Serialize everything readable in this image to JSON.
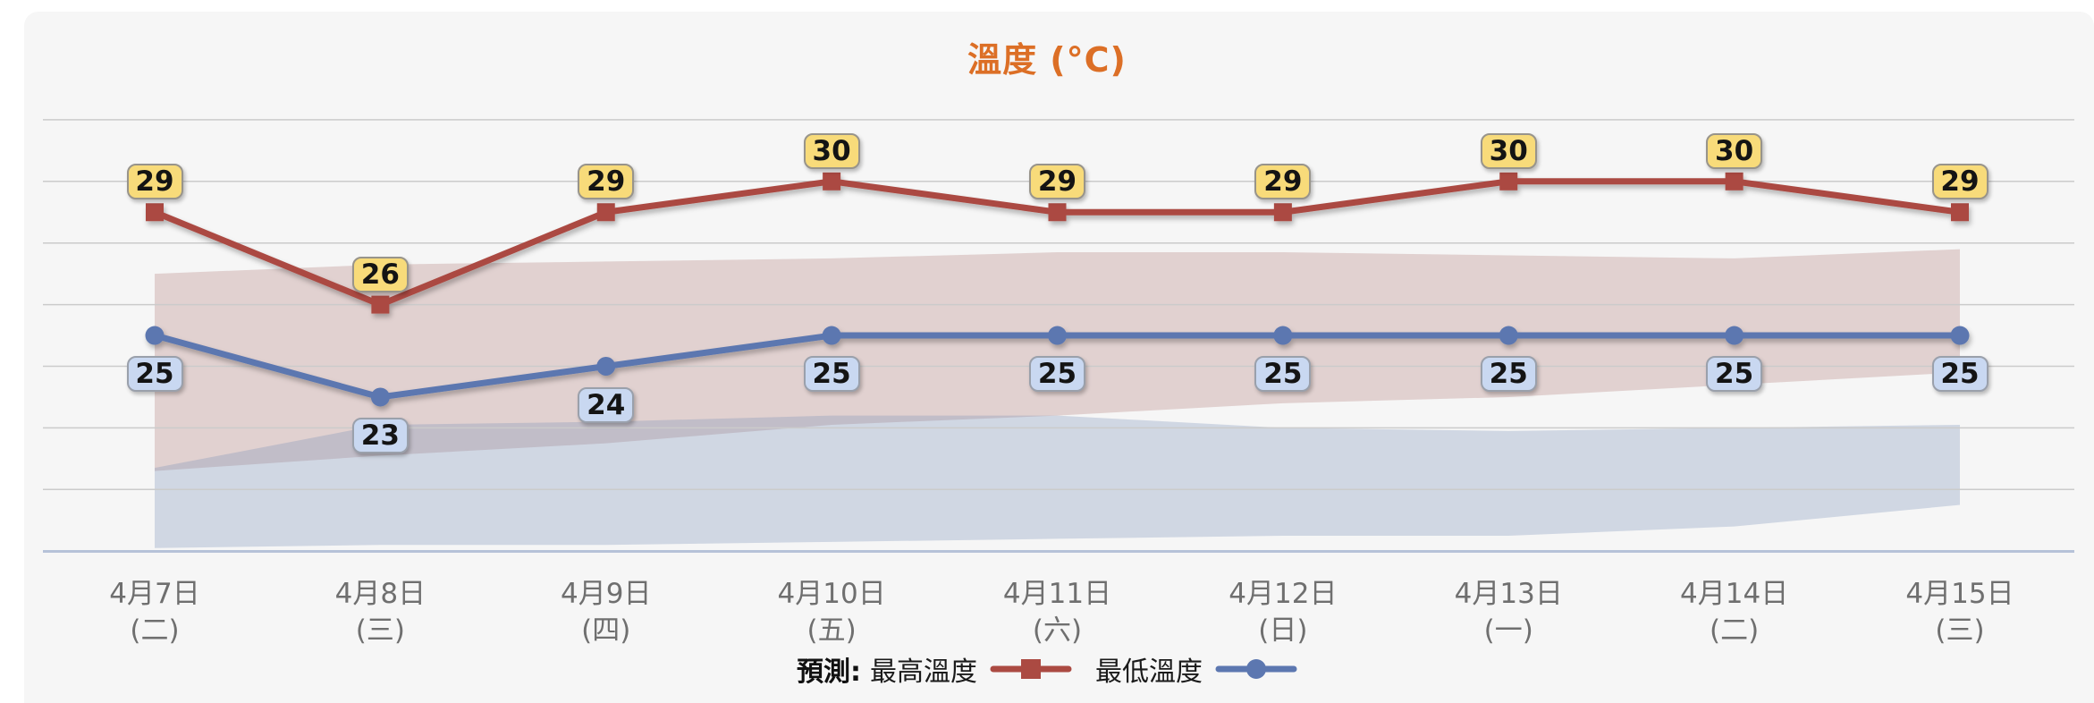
{
  "title": "溫度 (°C)",
  "colors": {
    "title": "#DC6F26",
    "max_series": "#AB4A42",
    "min_series": "#5C77B0",
    "max_label_bg": "#F8DB7A",
    "min_label_bg": "#C9D8F1"
  },
  "legend": {
    "prefix": "預測:",
    "max_label": "最高溫度",
    "min_label": "最低溫度"
  },
  "chart_data": {
    "type": "line",
    "title": "溫度 (°C)",
    "unit": "°C",
    "ylim": [
      18,
      33
    ],
    "gridline_temps": [
      20,
      22,
      24,
      26,
      28,
      30,
      32
    ],
    "grid_color": "#CBCBCB",
    "axis_color": "#B6C2D8",
    "tick_color": "#6F6F6F",
    "x_axis": [
      {
        "date": "4月7日",
        "weekday": "(二)"
      },
      {
        "date": "4月8日",
        "weekday": "(三)"
      },
      {
        "date": "4月9日",
        "weekday": "(四)"
      },
      {
        "date": "4月10日",
        "weekday": "(五)"
      },
      {
        "date": "4月11日",
        "weekday": "(六)"
      },
      {
        "date": "4月12日",
        "weekday": "(日)"
      },
      {
        "date": "4月13日",
        "weekday": "(一)"
      },
      {
        "date": "4月14日",
        "weekday": "(二)"
      },
      {
        "date": "4月15日",
        "weekday": "(三)"
      }
    ],
    "series": [
      {
        "name": "最高溫度",
        "values": [
          29,
          26,
          29,
          30,
          29,
          29,
          30,
          30,
          29
        ],
        "color": "#AB4A42",
        "marker": "square",
        "label_bg": "#F8DB7A",
        "label_border": "#98948B"
      },
      {
        "name": "最低溫度",
        "values": [
          25,
          23,
          24,
          25,
          25,
          25,
          25,
          25,
          25
        ],
        "color": "#5C77B0",
        "marker": "circle",
        "label_bg": "#C9D8F1",
        "label_border": "#9AA0AB"
      }
    ],
    "bands": [
      {
        "name": "normal-max-range",
        "fill": "rgba(177,121,118,0.30)",
        "top_temps": [
          27.0,
          27.3,
          27.4,
          27.5,
          27.7,
          27.7,
          27.6,
          27.5,
          27.8
        ],
        "bottom_temps": [
          20.6,
          21.1,
          21.5,
          22.1,
          22.4,
          22.8,
          23.0,
          23.4,
          23.8
        ]
      },
      {
        "name": "normal-min-range",
        "fill": "rgba(118,141,183,0.30)",
        "top_temps": [
          20.7,
          22.1,
          22.2,
          22.4,
          22.4,
          22.0,
          21.9,
          22.0,
          22.1
        ],
        "bottom_temps": [
          18.1,
          18.2,
          18.2,
          18.3,
          18.4,
          18.5,
          18.5,
          18.8,
          19.5
        ]
      }
    ]
  }
}
